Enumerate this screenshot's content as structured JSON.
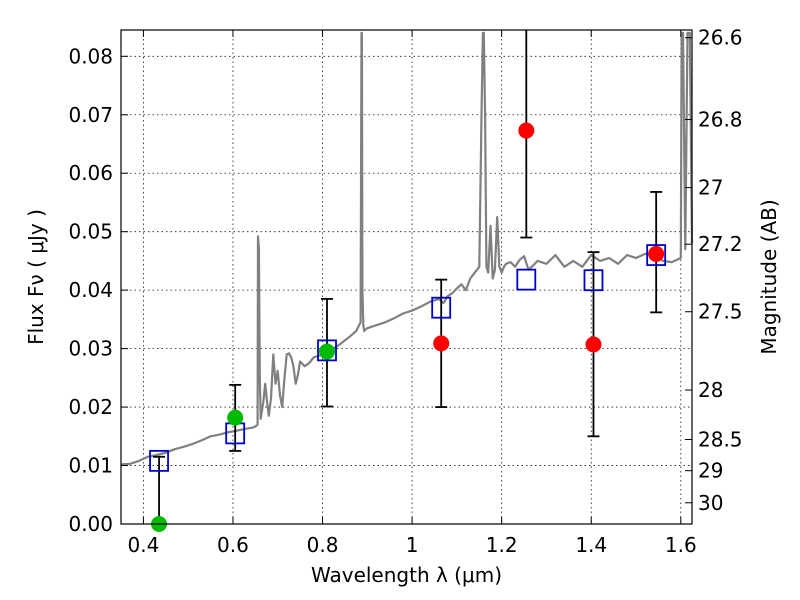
{
  "chart_data": {
    "type": "scatter",
    "title": "",
    "xlabel": "Wavelength  λ (μm)",
    "ylabel": "Flux  Fν  ( μJy )",
    "y2label": "Magnitude (AB)",
    "xlim": [
      0.35,
      1.625
    ],
    "ylim": [
      0.0,
      0.0845
    ],
    "grid": true,
    "x_ticks": [
      {
        "value": 0.4,
        "label": "0.4"
      },
      {
        "value": 0.6,
        "label": "0.6"
      },
      {
        "value": 0.8,
        "label": "0.8"
      },
      {
        "value": 1.0,
        "label": "1"
      },
      {
        "value": 1.2,
        "label": "1.2"
      },
      {
        "value": 1.4,
        "label": "1.4"
      },
      {
        "value": 1.6,
        "label": "1.6"
      }
    ],
    "y_ticks": [
      {
        "value": 0.0,
        "label": "0.00"
      },
      {
        "value": 0.01,
        "label": "0.01"
      },
      {
        "value": 0.02,
        "label": "0.02"
      },
      {
        "value": 0.03,
        "label": "0.03"
      },
      {
        "value": 0.04,
        "label": "0.04"
      },
      {
        "value": 0.05,
        "label": "0.05"
      },
      {
        "value": 0.06,
        "label": "0.06"
      },
      {
        "value": 0.07,
        "label": "0.07"
      },
      {
        "value": 0.08,
        "label": "0.08"
      }
    ],
    "y2_ticks": [
      {
        "mag": 26.6,
        "label": "26.6"
      },
      {
        "mag": 26.8,
        "label": "26.8"
      },
      {
        "mag": 27,
        "label": "27"
      },
      {
        "mag": 27.2,
        "label": "27.2"
      },
      {
        "mag": 27.5,
        "label": "27.5"
      },
      {
        "mag": 28,
        "label": "28"
      },
      {
        "mag": 28.5,
        "label": "28.5"
      },
      {
        "mag": 29,
        "label": "29"
      },
      {
        "mag": 30,
        "label": "30"
      }
    ],
    "series": [
      {
        "name": "model spectrum",
        "kind": "line",
        "color": "#808080",
        "x": [
          0.35,
          0.37,
          0.39,
          0.41,
          0.43,
          0.45,
          0.47,
          0.49,
          0.51,
          0.53,
          0.55,
          0.57,
          0.59,
          0.61,
          0.63,
          0.645,
          0.65,
          0.655,
          0.656,
          0.658,
          0.66,
          0.662,
          0.665,
          0.668,
          0.672,
          0.676,
          0.68,
          0.685,
          0.69,
          0.695,
          0.7,
          0.705,
          0.71,
          0.715,
          0.72,
          0.725,
          0.73,
          0.735,
          0.74,
          0.745,
          0.75,
          0.76,
          0.77,
          0.78,
          0.8,
          0.82,
          0.84,
          0.86,
          0.875,
          0.885,
          0.887,
          0.888,
          0.889,
          0.891,
          0.893,
          0.895,
          0.9,
          0.92,
          0.94,
          0.96,
          0.98,
          1.0,
          1.02,
          1.04,
          1.06,
          1.07,
          1.08,
          1.09,
          1.1,
          1.11,
          1.12,
          1.13,
          1.14,
          1.15,
          1.155,
          1.158,
          1.16,
          1.163,
          1.166,
          1.17,
          1.175,
          1.18,
          1.185,
          1.19,
          1.195,
          1.2,
          1.205,
          1.21,
          1.22,
          1.23,
          1.24,
          1.25,
          1.26,
          1.27,
          1.28,
          1.3,
          1.32,
          1.34,
          1.36,
          1.38,
          1.4,
          1.42,
          1.44,
          1.46,
          1.48,
          1.5,
          1.52,
          1.54,
          1.56,
          1.58,
          1.6,
          1.602,
          1.605,
          1.61,
          1.615,
          1.62,
          1.625
        ],
        "y": [
          0.0102,
          0.0103,
          0.0108,
          0.0115,
          0.0118,
          0.0122,
          0.0128,
          0.0132,
          0.0137,
          0.0143,
          0.015,
          0.0153,
          0.0157,
          0.016,
          0.0163,
          0.0165,
          0.0167,
          0.017,
          0.0492,
          0.0472,
          0.025,
          0.018,
          0.0195,
          0.021,
          0.024,
          0.021,
          0.0185,
          0.0215,
          0.029,
          0.024,
          0.0262,
          0.022,
          0.02,
          0.025,
          0.029,
          0.0292,
          0.0285,
          0.027,
          0.024,
          0.0255,
          0.0278,
          0.027,
          0.0275,
          0.0285,
          0.029,
          0.0298,
          0.0308,
          0.032,
          0.033,
          0.0345,
          0.084,
          0.084,
          0.04,
          0.034,
          0.033,
          0.0332,
          0.0335,
          0.034,
          0.0345,
          0.0352,
          0.036,
          0.0365,
          0.0372,
          0.038,
          0.0385,
          0.0378,
          0.039,
          0.0395,
          0.0403,
          0.041,
          0.04,
          0.042,
          0.043,
          0.044,
          0.07,
          0.084,
          0.084,
          0.07,
          0.044,
          0.043,
          0.051,
          0.042,
          0.0435,
          0.0525,
          0.044,
          0.043,
          0.044,
          0.0445,
          0.0448,
          0.044,
          0.0452,
          0.0458,
          0.0435,
          0.0442,
          0.045,
          0.0445,
          0.046,
          0.044,
          0.045,
          0.044,
          0.046,
          0.045,
          0.0455,
          0.0445,
          0.046,
          0.0455,
          0.0462,
          0.046,
          0.045,
          0.0448,
          0.0455,
          0.084,
          0.084,
          0.047,
          0.084,
          0.084,
          0.048
        ]
      },
      {
        "name": "red points",
        "kind": "points",
        "marker": "filled-circle",
        "color": "#ff0000",
        "x": [
          1.065,
          1.255,
          1.405,
          1.545
        ],
        "y": [
          0.0309,
          0.0673,
          0.0307,
          0.0462
        ],
        "yerr_low": [
          0.02,
          0.049,
          0.015,
          0.0362
        ],
        "yerr_high": [
          0.0418,
          0.0845,
          0.0465,
          0.0568
        ]
      },
      {
        "name": "green points",
        "kind": "points",
        "marker": "filled-circle",
        "color": "#00bb00",
        "x": [
          0.435,
          0.605,
          0.81
        ],
        "y": [
          0.0,
          0.0182,
          0.0295
        ],
        "yerr_low": [
          0.0,
          0.0125,
          0.0201
        ],
        "yerr_high": [
          0.0115,
          0.0238,
          0.0385
        ]
      },
      {
        "name": "blue squares",
        "kind": "points",
        "marker": "open-square",
        "color": "#0000cc",
        "x": [
          0.435,
          0.605,
          0.81,
          1.065,
          1.255,
          1.405,
          1.545
        ],
        "y": [
          0.0108,
          0.0155,
          0.0297,
          0.037,
          0.0418,
          0.0417,
          0.046
        ]
      }
    ]
  }
}
